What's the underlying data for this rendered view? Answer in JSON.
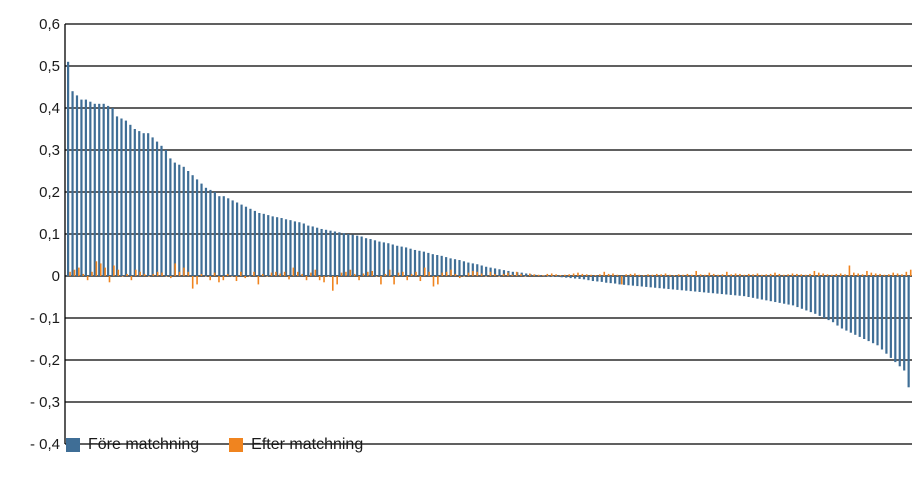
{
  "chart_data": {
    "type": "bar",
    "title": "",
    "xlabel": "",
    "ylabel": "",
    "ylim": [
      -0.4,
      0.6
    ],
    "yticks": [
      0.6,
      0.5,
      0.4,
      0.3,
      0.2,
      0.1,
      0,
      -0.1,
      -0.2,
      -0.3,
      -0.4
    ],
    "ytick_labels": [
      "0,6",
      "0,5",
      "0,4",
      "0,3",
      "0,2",
      "0,1",
      "0",
      "- 0,1",
      "- 0,2",
      "- 0,3",
      "- 0,4"
    ],
    "grid": true,
    "legend_position": "bottom-left",
    "series": [
      {
        "name": "Före matchning",
        "color": "#3F6E96",
        "values": [
          0.51,
          0.44,
          0.43,
          0.42,
          0.42,
          0.415,
          0.41,
          0.41,
          0.41,
          0.405,
          0.4,
          0.38,
          0.375,
          0.37,
          0.36,
          0.35,
          0.345,
          0.34,
          0.34,
          0.33,
          0.32,
          0.31,
          0.3,
          0.28,
          0.27,
          0.265,
          0.26,
          0.25,
          0.24,
          0.23,
          0.22,
          0.21,
          0.205,
          0.2,
          0.19,
          0.19,
          0.185,
          0.18,
          0.175,
          0.17,
          0.165,
          0.16,
          0.155,
          0.15,
          0.148,
          0.145,
          0.142,
          0.14,
          0.138,
          0.135,
          0.133,
          0.13,
          0.128,
          0.125,
          0.12,
          0.118,
          0.115,
          0.112,
          0.11,
          0.108,
          0.106,
          0.104,
          0.102,
          0.1,
          0.098,
          0.096,
          0.094,
          0.09,
          0.088,
          0.085,
          0.082,
          0.08,
          0.078,
          0.075,
          0.072,
          0.07,
          0.068,
          0.065,
          0.062,
          0.06,
          0.058,
          0.055,
          0.052,
          0.05,
          0.048,
          0.045,
          0.042,
          0.04,
          0.038,
          0.035,
          0.032,
          0.03,
          0.028,
          0.025,
          0.022,
          0.02,
          0.018,
          0.016,
          0.014,
          0.012,
          0.01,
          0.009,
          0.008,
          0.006,
          0.004,
          0.003,
          0.002,
          0.001,
          0.0,
          -0.001,
          -0.002,
          -0.003,
          -0.004,
          -0.005,
          -0.006,
          -0.007,
          -0.008,
          -0.01,
          -0.012,
          -0.013,
          -0.014,
          -0.016,
          -0.017,
          -0.018,
          -0.02,
          -0.021,
          -0.022,
          -0.023,
          -0.024,
          -0.025,
          -0.026,
          -0.027,
          -0.028,
          -0.029,
          -0.03,
          -0.031,
          -0.032,
          -0.033,
          -0.034,
          -0.035,
          -0.036,
          -0.037,
          -0.038,
          -0.039,
          -0.04,
          -0.041,
          -0.042,
          -0.043,
          -0.044,
          -0.045,
          -0.046,
          -0.047,
          -0.048,
          -0.05,
          -0.052,
          -0.054,
          -0.056,
          -0.058,
          -0.06,
          -0.062,
          -0.064,
          -0.066,
          -0.068,
          -0.07,
          -0.074,
          -0.078,
          -0.082,
          -0.086,
          -0.09,
          -0.095,
          -0.1,
          -0.105,
          -0.11,
          -0.118,
          -0.125,
          -0.13,
          -0.135,
          -0.14,
          -0.145,
          -0.15,
          -0.155,
          -0.16,
          -0.165,
          -0.175,
          -0.185,
          -0.195,
          -0.205,
          -0.215,
          -0.225,
          -0.265
        ]
      },
      {
        "name": "Efter matchning",
        "color": "#F0841F",
        "values": [
          0.01,
          0.015,
          0.02,
          0.005,
          -0.01,
          0.01,
          0.035,
          0.03,
          0.02,
          -0.015,
          0.025,
          0.015,
          0.0,
          0.005,
          -0.01,
          0.015,
          0.01,
          0.005,
          0.0,
          0.005,
          0.01,
          0.008,
          0.0,
          -0.005,
          0.03,
          0.01,
          0.02,
          0.01,
          -0.03,
          -0.02,
          0.005,
          0.0,
          -0.01,
          0.008,
          -0.015,
          -0.01,
          0.005,
          0.0,
          -0.012,
          0.01,
          -0.005,
          0.0,
          0.01,
          -0.02,
          0.005,
          0.0,
          0.008,
          0.01,
          0.006,
          0.01,
          -0.008,
          0.02,
          0.01,
          0.005,
          -0.01,
          0.008,
          0.015,
          -0.01,
          -0.015,
          0.0,
          -0.035,
          -0.02,
          0.008,
          0.01,
          0.015,
          0.005,
          -0.01,
          0.006,
          0.01,
          0.012,
          0.0,
          -0.02,
          0.005,
          0.015,
          -0.02,
          0.008,
          0.01,
          -0.01,
          0.005,
          0.01,
          -0.012,
          0.02,
          0.01,
          -0.025,
          -0.02,
          0.008,
          0.01,
          0.015,
          0.005,
          -0.005,
          0.0,
          0.008,
          0.012,
          0.01,
          0.006,
          0.0,
          0.01,
          0.005,
          0.0,
          0.005,
          0.008,
          0.003,
          0.01,
          0.005,
          0.0,
          0.006,
          0.004,
          0.003,
          0.002,
          0.005,
          0.006,
          0.004,
          0.002,
          0.003,
          0.004,
          0.006,
          0.008,
          0.005,
          0.004,
          0.003,
          0.002,
          0.004,
          0.01,
          0.005,
          0.006,
          0.003,
          -0.02,
          0.004,
          0.005,
          0.006,
          0.003,
          0.002,
          0.004,
          0.003,
          0.005,
          0.004,
          0.006,
          0.003,
          0.002,
          0.004,
          0.003,
          0.005,
          0.003,
          0.012,
          0.004,
          0.003,
          0.008,
          0.005,
          0.003,
          0.004,
          0.01,
          0.004,
          0.006,
          0.005,
          0.003,
          0.005,
          0.004,
          0.006,
          0.003,
          0.004,
          0.005,
          0.008,
          0.005,
          0.003,
          0.004,
          0.006,
          0.005,
          0.004,
          0.003,
          0.005,
          0.012,
          0.008,
          0.006,
          0.004,
          0.003,
          0.005,
          0.006,
          0.004,
          0.025,
          0.008,
          0.006,
          0.004,
          0.012,
          0.008,
          0.006,
          0.005,
          0.003,
          0.004,
          0.008,
          0.006,
          0.004,
          0.01,
          0.015
        ]
      }
    ]
  }
}
